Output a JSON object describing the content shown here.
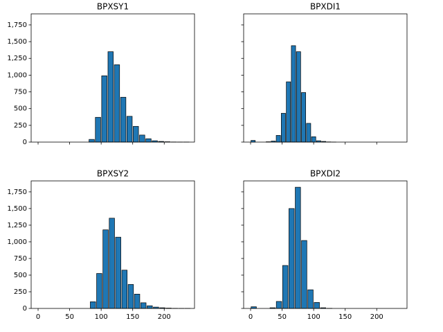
{
  "chart_data": [
    {
      "type": "histogram",
      "title": "BPXSY1",
      "color": "#1f77b4",
      "edgecolor": "#000000",
      "bins": [
        80,
        90,
        100,
        110,
        120,
        130,
        140,
        150,
        160,
        170,
        180,
        190,
        200,
        210,
        220,
        230,
        240
      ],
      "values": [
        40,
        370,
        990,
        1350,
        1155,
        670,
        385,
        235,
        105,
        50,
        20,
        10,
        5,
        2,
        1,
        1
      ],
      "xlim": [
        -11,
        248
      ],
      "xticks": [
        0,
        50,
        100,
        150,
        200
      ],
      "ylim": [
        0,
        1915
      ],
      "yticks": [
        0,
        250,
        500,
        750,
        {
          "value": 1000,
          "label": "1,000"
        },
        {
          "value": 1250,
          "label": "1,250"
        },
        {
          "value": 1500,
          "label": "1,500"
        },
        {
          "value": 1750,
          "label": "1,750"
        }
      ]
    },
    {
      "type": "histogram",
      "title": "BPXDI1",
      "color": "#1f77b4",
      "edgecolor": "#000000",
      "bins": [
        0,
        8,
        16,
        24,
        32,
        40,
        48,
        56,
        64,
        72,
        80,
        88,
        96,
        104,
        112,
        120,
        128,
        136,
        144,
        152,
        160
      ],
      "values": [
        25,
        0,
        0,
        5,
        15,
        100,
        430,
        900,
        1440,
        1350,
        740,
        280,
        80,
        20,
        10,
        3,
        1,
        0,
        0,
        0
      ],
      "xlim": [
        -11,
        248
      ],
      "xticks": [
        0,
        50,
        100,
        150,
        200
      ],
      "ylim": [
        0,
        1915
      ],
      "yticks": [
        0,
        250,
        500,
        750,
        1000,
        1250,
        1500,
        1750
      ]
    },
    {
      "type": "histogram",
      "title": "BPXSY2",
      "color": "#1f77b4",
      "edgecolor": "#000000",
      "bins": [
        82,
        92,
        102,
        112,
        122,
        132,
        142,
        152,
        162,
        172,
        182,
        192,
        202,
        212,
        222,
        232,
        242
      ],
      "values": [
        100,
        525,
        1180,
        1355,
        1070,
        575,
        360,
        215,
        85,
        40,
        20,
        10,
        5,
        2,
        1,
        1
      ],
      "xlim": [
        -11,
        248
      ],
      "xticks": [
        0,
        50,
        100,
        150,
        200
      ],
      "ylim": [
        0,
        1915
      ],
      "yticks": [
        0,
        250,
        500,
        750,
        {
          "value": 1000,
          "label": "1,000"
        },
        {
          "value": 1250,
          "label": "1,250"
        },
        {
          "value": 1500,
          "label": "1,500"
        },
        {
          "value": 1750,
          "label": "1,750"
        }
      ]
    },
    {
      "type": "histogram",
      "title": "BPXDI2",
      "color": "#1f77b4",
      "edgecolor": "#000000",
      "bins": [
        0,
        10,
        20,
        30,
        40,
        50,
        60,
        70,
        80,
        90,
        100,
        110,
        120,
        130
      ],
      "values": [
        25,
        0,
        0,
        10,
        105,
        645,
        1500,
        1820,
        1020,
        280,
        90,
        10,
        2
      ],
      "xlim": [
        -11,
        248
      ],
      "xticks": [
        0,
        50,
        100,
        150,
        200
      ],
      "ylim": [
        0,
        1915
      ],
      "yticks": [
        0,
        250,
        500,
        750,
        1000,
        1250,
        1500,
        1750
      ]
    }
  ]
}
